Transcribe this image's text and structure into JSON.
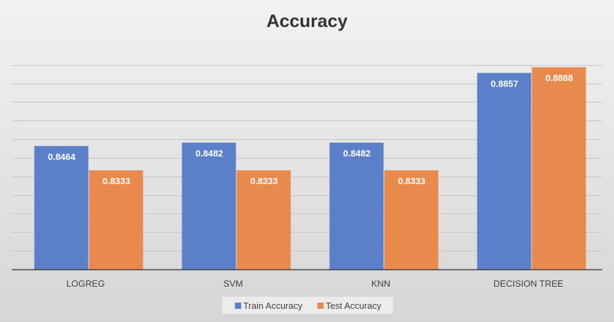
{
  "chart_data": {
    "type": "bar",
    "title": "Accuracy",
    "categories": [
      "LOGREG",
      "SVM",
      "KNN",
      "DECISION TREE"
    ],
    "series": [
      {
        "name": "Train Accuracy",
        "values": [
          0.8464,
          0.8482,
          0.8482,
          0.8857
        ],
        "labels": [
          "0.8464",
          "0.8482",
          "0.8482",
          "0.8857"
        ],
        "color": "#5B7FC9"
      },
      {
        "name": "Test Accuracy",
        "values": [
          0.8333,
          0.8333,
          0.8333,
          0.8888
        ],
        "labels": [
          "0.8333",
          "0.8333",
          "0.8333",
          "0.8888"
        ],
        "color": "#E8894D"
      }
    ],
    "xlabel": "",
    "ylabel": "",
    "ylim": [
      0.78,
      0.9
    ],
    "grid": true,
    "legend": "bottom",
    "background": "#e3e3e3"
  }
}
